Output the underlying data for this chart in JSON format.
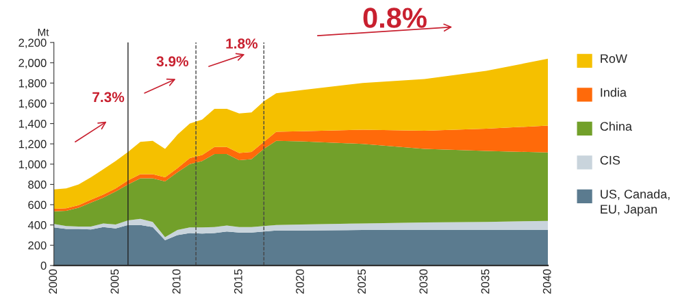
{
  "chart_data": {
    "type": "area",
    "stacked": true,
    "ylabel": "Mt",
    "x": [
      2000,
      2001,
      2002,
      2003,
      2004,
      2005,
      2006,
      2007,
      2008,
      2009,
      2010,
      2011,
      2012,
      2013,
      2014,
      2015,
      2016,
      2017,
      2018,
      2020,
      2025,
      2030,
      2035,
      2040
    ],
    "series": [
      {
        "name": "US, Canada, EU, Japan",
        "color": "#5b7b8f",
        "values": [
          375,
          360,
          360,
          355,
          380,
          365,
          400,
          400,
          380,
          250,
          300,
          320,
          315,
          320,
          335,
          325,
          325,
          335,
          345,
          345,
          350,
          350,
          350,
          350
        ]
      },
      {
        "name": "CIS",
        "color": "#c9d4dc",
        "values": [
          35,
          30,
          25,
          30,
          35,
          40,
          45,
          60,
          50,
          30,
          50,
          55,
          60,
          60,
          60,
          55,
          55,
          55,
          55,
          60,
          65,
          75,
          80,
          90
        ]
      },
      {
        "name": "China",
        "color": "#72a02a",
        "values": [
          125,
          150,
          185,
          235,
          255,
          325,
          355,
          400,
          430,
          550,
          570,
          625,
          655,
          720,
          705,
          660,
          670,
          760,
          830,
          820,
          785,
          725,
          700,
          675
        ]
      },
      {
        "name": "India",
        "color": "#ff6a0a",
        "values": [
          25,
          25,
          25,
          30,
          30,
          30,
          40,
          40,
          40,
          40,
          40,
          60,
          60,
          70,
          70,
          70,
          70,
          70,
          90,
          100,
          140,
          180,
          220,
          265
        ]
      },
      {
        "name": "RoW",
        "color": "#f5c000",
        "values": [
          190,
          195,
          205,
          220,
          250,
          270,
          280,
          320,
          330,
          280,
          330,
          340,
          350,
          375,
          375,
          390,
          390,
          400,
          380,
          405,
          460,
          510,
          570,
          660
        ]
      }
    ],
    "xlim": [
      2000,
      2040
    ],
    "xticks": [
      2000,
      2005,
      2010,
      2015,
      2020,
      2025,
      2030,
      2035,
      2040
    ],
    "ylim": [
      0,
      2200
    ],
    "yticks": [
      {
        "value": 0,
        "label": "0"
      },
      {
        "value": 200,
        "label": "200"
      },
      {
        "value": 400,
        "label": "400"
      },
      {
        "value": 600,
        "label": "600"
      },
      {
        "value": 800,
        "label": "800"
      },
      {
        "value": 1000,
        "label": "1,000"
      },
      {
        "value": 1200,
        "label": "1,200"
      },
      {
        "value": 1400,
        "label": "1,400"
      },
      {
        "value": 1600,
        "label": "1,600"
      },
      {
        "value": 1800,
        "label": "1,800"
      },
      {
        "value": 2000,
        "label": "2,000"
      },
      {
        "value": 2200,
        "label": "2,200"
      }
    ],
    "ref_lines": [
      {
        "axis": "x",
        "value": 2006,
        "color": "#222222",
        "line_style": "solid"
      },
      {
        "axis": "x",
        "value": 2011.5,
        "color": "#444444",
        "line_style": "dashed"
      },
      {
        "axis": "x",
        "value": 2017,
        "color": "#444444",
        "line_style": "dashed"
      }
    ],
    "annotations": [
      "7.3%",
      "3.9%",
      "1.8%",
      "0.8%"
    ],
    "grid": false,
    "legend": "right"
  }
}
